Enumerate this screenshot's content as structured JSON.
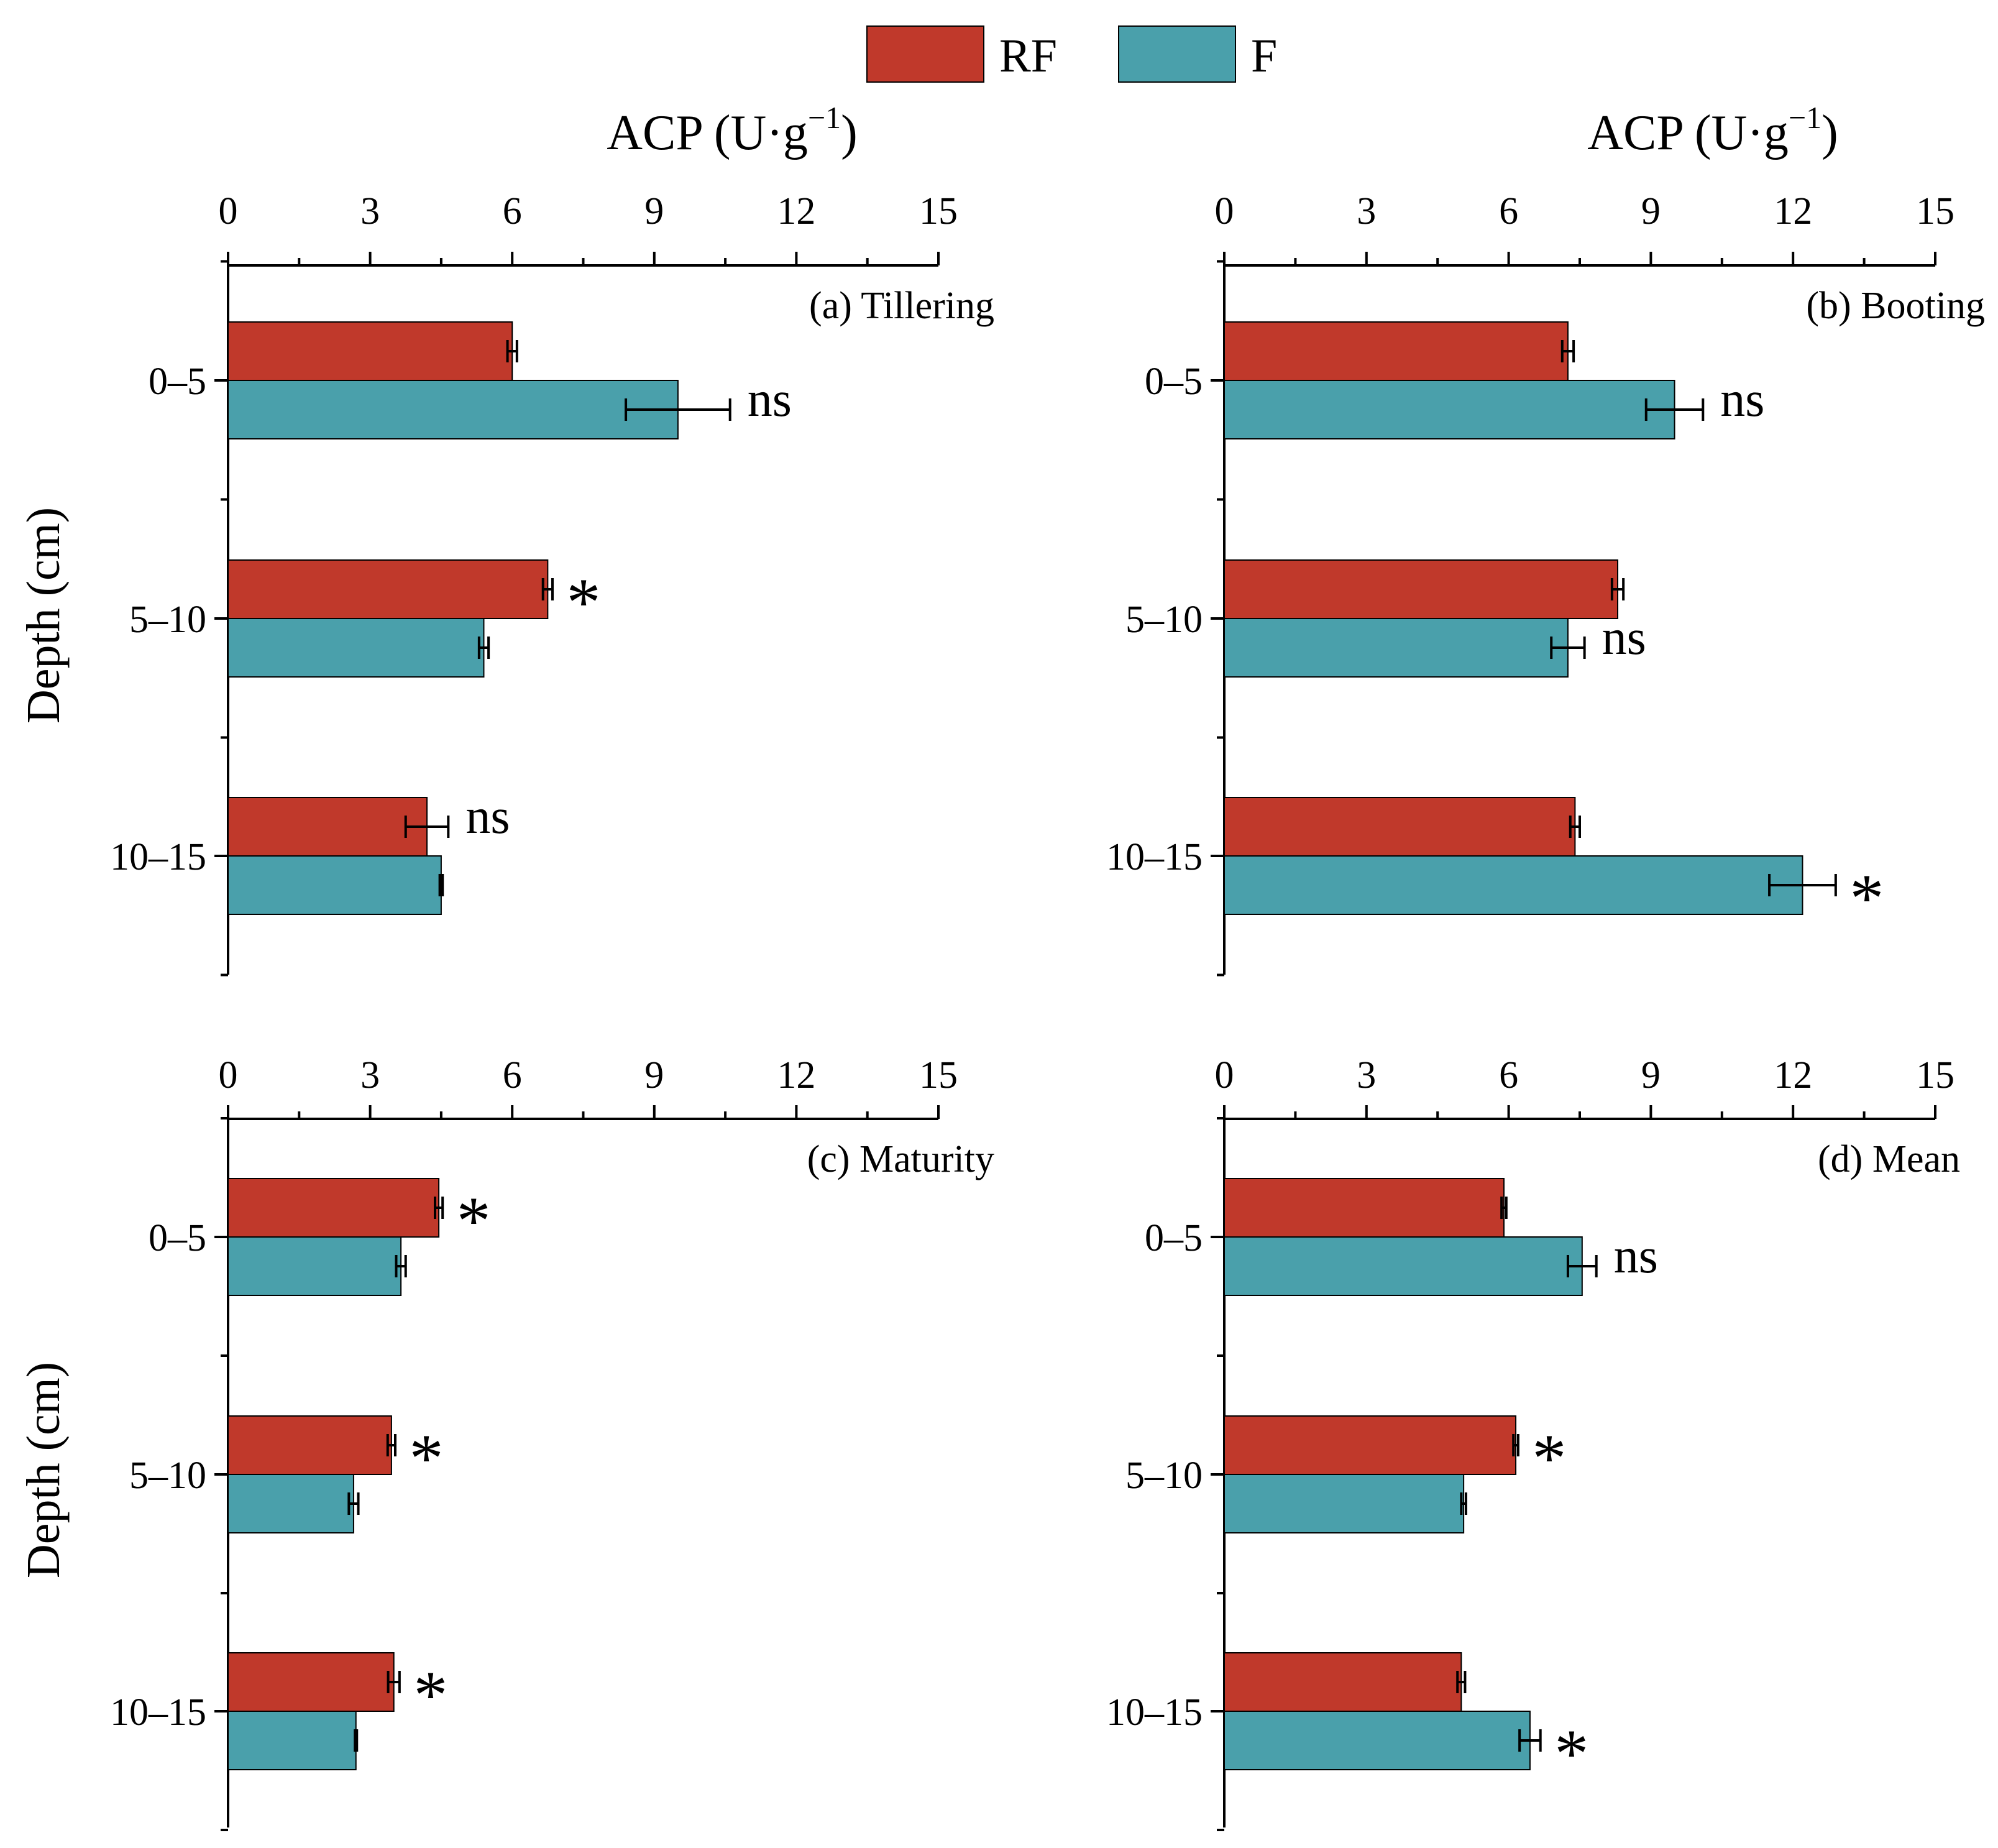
{
  "legend": {
    "position": "top-center",
    "items": [
      {
        "label": "RF",
        "color": "#c0392b"
      },
      {
        "label": "F",
        "color": "#4aa0ab"
      }
    ]
  },
  "y_axis_title": "Depth (cm)",
  "x_axis_title": "ACP (U·g",
  "x_axis_exponent": "−1",
  "x_axis_title_close": ")",
  "colors": {
    "RF": "#c0392b",
    "F": "#4aa0ab",
    "error_bar": "#000000"
  },
  "chart_data": [
    {
      "type": "bar",
      "orientation": "horizontal",
      "panel": "(a) Tillering",
      "xlabel": "ACP (U·g−1)",
      "ylabel": "Depth (cm)",
      "xlim": [
        0,
        15
      ],
      "xticks": [
        "0",
        "3",
        "6",
        "9",
        "12",
        "15"
      ],
      "categories": [
        "0–5",
        "5–10",
        "10–15"
      ],
      "series": [
        {
          "name": "RF",
          "values": [
            6.0,
            6.75,
            4.2
          ],
          "errors": [
            0.1,
            0.1,
            0.45
          ]
        },
        {
          "name": "F",
          "values": [
            9.5,
            5.4,
            4.5
          ],
          "errors": [
            1.1,
            0.1,
            0.03
          ]
        }
      ],
      "significance": [
        "ns",
        "*",
        "ns"
      ],
      "sig_series": [
        "F",
        "RF",
        "RF"
      ]
    },
    {
      "type": "bar",
      "orientation": "horizontal",
      "panel": "(b) Booting",
      "xlabel": "ACP (U·g−1)",
      "ylabel": "Depth (cm)",
      "xlim": [
        0,
        15
      ],
      "xticks": [
        "0",
        "3",
        "6",
        "9",
        "12",
        "15"
      ],
      "categories": [
        "0–5",
        "5–10",
        "10–15"
      ],
      "series": [
        {
          "name": "RF",
          "values": [
            7.25,
            8.3,
            7.4
          ],
          "errors": [
            0.12,
            0.12,
            0.1
          ]
        },
        {
          "name": "F",
          "values": [
            9.5,
            7.25,
            12.2
          ],
          "errors": [
            0.6,
            0.35,
            0.7
          ]
        }
      ],
      "significance": [
        "ns",
        "ns",
        "*"
      ],
      "sig_series": [
        "F",
        "F",
        "F"
      ]
    },
    {
      "type": "bar",
      "orientation": "horizontal",
      "panel": "(c) Maturity",
      "xlabel": "ACP (U·g−1)",
      "ylabel": "Depth (cm)",
      "xlim": [
        0,
        15
      ],
      "xticks": [
        "0",
        "3",
        "6",
        "9",
        "12",
        "15"
      ],
      "categories": [
        "0–5",
        "5–10",
        "10–15"
      ],
      "series": [
        {
          "name": "RF",
          "values": [
            4.45,
            3.45,
            3.5
          ],
          "errors": [
            0.08,
            0.08,
            0.12
          ]
        },
        {
          "name": "F",
          "values": [
            3.65,
            2.65,
            2.7
          ],
          "errors": [
            0.1,
            0.1,
            0.02
          ]
        }
      ],
      "significance": [
        "*",
        "*",
        "*"
      ],
      "sig_series": [
        "RF",
        "RF",
        "RF"
      ]
    },
    {
      "type": "bar",
      "orientation": "horizontal",
      "panel": "(d) Mean",
      "xlabel": "ACP (U·g−1)",
      "ylabel": "Depth (cm)",
      "xlim": [
        0,
        15
      ],
      "xticks": [
        "0",
        "3",
        "6",
        "9",
        "12",
        "15"
      ],
      "categories": [
        "0–5",
        "5–10",
        "10–15"
      ],
      "series": [
        {
          "name": "RF",
          "values": [
            5.9,
            6.15,
            5.0
          ],
          "errors": [
            0.05,
            0.05,
            0.08
          ]
        },
        {
          "name": "F",
          "values": [
            7.55,
            5.05,
            6.45
          ],
          "errors": [
            0.3,
            0.05,
            0.22
          ]
        }
      ],
      "significance": [
        "ns",
        "*",
        "*"
      ],
      "sig_series": [
        "F",
        "RF",
        "F"
      ]
    }
  ]
}
